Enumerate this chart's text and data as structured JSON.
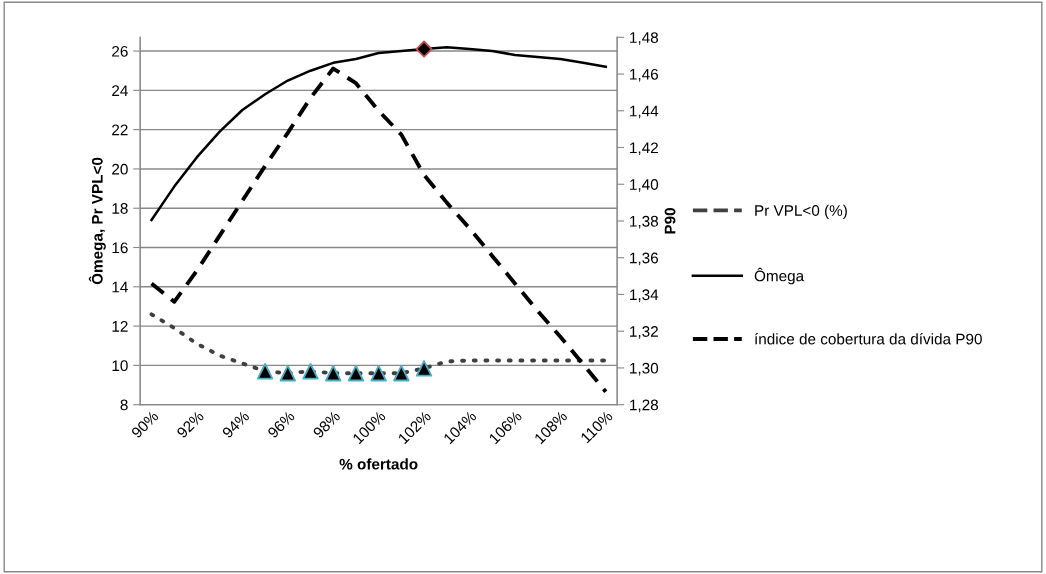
{
  "chart_data": {
    "type": "line",
    "xlabel": "% ofertado",
    "ylabel": "Ômega, Pr VPL<0",
    "y2label": "P90",
    "categories": [
      "90%",
      null,
      "92%",
      null,
      "94%",
      null,
      "96%",
      null,
      "98%",
      null,
      "100%",
      null,
      "102%",
      null,
      "104%",
      null,
      "106%",
      null,
      "108%",
      null,
      "110%"
    ],
    "series": [
      {
        "name": "Pr VPL<0 (%)",
        "color": "#404040",
        "line_style": "dotted",
        "values": [
          12.6,
          11.9,
          11.1,
          10.5,
          10.1,
          9.7,
          9.6,
          9.7,
          9.6,
          9.6,
          9.6,
          9.6,
          9.85,
          10.2,
          10.25,
          10.25,
          10.25,
          10.25,
          10.25,
          10.25,
          10.25
        ]
      },
      {
        "name": "Ômega",
        "color": "#000000",
        "line_style": "solid",
        "values": [
          17.4,
          19.1,
          20.6,
          21.9,
          23.0,
          23.8,
          24.5,
          25.0,
          25.4,
          25.6,
          25.9,
          26.0,
          26.1,
          26.2,
          26.1,
          26.0,
          25.8,
          25.7,
          25.6,
          25.4,
          25.2
        ]
      },
      {
        "name": "índice de cobertura da dívida P90",
        "color": "#000000",
        "line_style": "dashed",
        "axis": "y2",
        "values": [
          1.346,
          1.336,
          1.353,
          1.372,
          1.391,
          1.41,
          1.428,
          1.447,
          1.463,
          1.455,
          1.44,
          1.427,
          1.405,
          1.39,
          1.376,
          1.361,
          1.346,
          1.331,
          1.317,
          1.302,
          1.287
        ]
      },
      {
        "type": "scatter",
        "marker": "triangle",
        "color": "#000000",
        "values": [
          null,
          null,
          null,
          null,
          null,
          9.7,
          9.6,
          9.7,
          9.6,
          9.6,
          9.6,
          9.6,
          9.85,
          null,
          null,
          null,
          null,
          null,
          null,
          null,
          null
        ]
      },
      {
        "type": "scatter",
        "marker": "diamond",
        "color": "#000000",
        "values": [
          null,
          null,
          null,
          null,
          null,
          null,
          null,
          null,
          null,
          null,
          null,
          null,
          26.1,
          null,
          null,
          null,
          null,
          null,
          null,
          null,
          null
        ]
      }
    ],
    "ylim": [
      8,
      26.7
    ],
    "yticks": [
      8,
      10,
      12,
      14,
      16,
      18,
      20,
      22,
      24,
      26
    ],
    "y2lim": [
      1.28,
      1.48
    ],
    "y2ticks": [
      {
        "value": 1.28,
        "label": "1,28"
      },
      {
        "value": 1.3,
        "label": "1,30"
      },
      {
        "value": 1.32,
        "label": "1,32"
      },
      {
        "value": 1.34,
        "label": "1,34"
      },
      {
        "value": 1.36,
        "label": "1,36"
      },
      {
        "value": 1.38,
        "label": "1,38"
      },
      {
        "value": 1.4,
        "label": "1,40"
      },
      {
        "value": 1.42,
        "label": "1,42"
      },
      {
        "value": 1.44,
        "label": "1,44"
      },
      {
        "value": 1.46,
        "label": "1,46"
      },
      {
        "value": 1.48,
        "label": "1,48"
      }
    ],
    "grid": "y",
    "legend": "right"
  }
}
